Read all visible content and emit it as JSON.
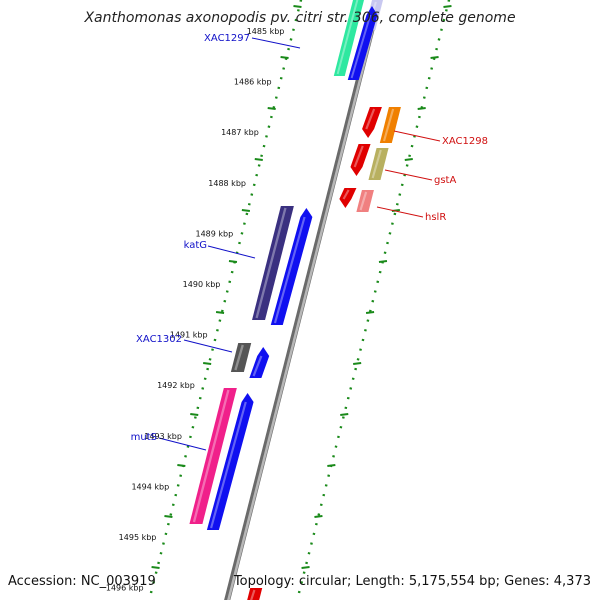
{
  "title": "Xanthomonas axonopodis pv. citri str. 306, complete genome",
  "footer": {
    "accession": "Accession: NC_003919",
    "summary": "Topology: circular; Length: 5,175,554 bp; Genes: 4,373"
  },
  "colors": {
    "backbone": "#8c8c8c",
    "ticks": "#1a8a1a",
    "forward_label": "#1010c8",
    "reverse_label": "#d01010"
  },
  "kbp_marks": [
    {
      "label": "1485 kbp"
    },
    {
      "label": "1486 kbp"
    },
    {
      "label": "1487 kbp"
    },
    {
      "label": "1488 kbp"
    },
    {
      "label": "1489 kbp"
    },
    {
      "label": "1490 kbp"
    },
    {
      "label": "1491 kbp"
    },
    {
      "label": "1492 kbp"
    },
    {
      "label": "1493 kbp"
    },
    {
      "label": "1494 kbp"
    },
    {
      "label": "1495 kbp"
    },
    {
      "label": "1496 kbp"
    }
  ],
  "gene_labels": [
    {
      "name": "XAC1297",
      "strand": "forward"
    },
    {
      "name": "katG",
      "strand": "forward"
    },
    {
      "name": "XAC1302",
      "strand": "forward"
    },
    {
      "name": "mutS",
      "strand": "forward"
    },
    {
      "name": "XAC1298",
      "strand": "reverse"
    },
    {
      "name": "gstA",
      "strand": "reverse"
    },
    {
      "name": "hslR",
      "strand": "reverse"
    }
  ],
  "genes": [
    {
      "strand": "forward",
      "color": "#2ee8a0"
    },
    {
      "strand": "forward",
      "color": "#c8c8f0"
    },
    {
      "strand": "forward",
      "color": "#3a3080"
    },
    {
      "strand": "forward",
      "color": "#555555"
    },
    {
      "strand": "forward",
      "color": "#f0208a"
    },
    {
      "strand": "reverse",
      "color": "#e00000"
    },
    {
      "strand": "reverse",
      "color": "#f08000"
    },
    {
      "strand": "reverse",
      "color": "#b8b060"
    },
    {
      "strand": "reverse",
      "color": "#f08080"
    }
  ]
}
